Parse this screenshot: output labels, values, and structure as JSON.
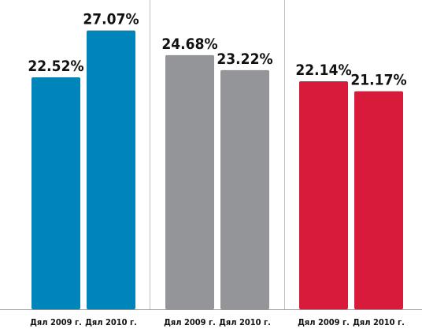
{
  "chart_data": [
    {
      "type": "bar",
      "categories": [
        "Дял 2009 г.",
        "Дял 2010 г."
      ],
      "values": [
        22.52,
        27.07
      ],
      "value_labels": [
        "22.52%",
        "27.07%"
      ],
      "color": "#0085bb",
      "ylim": [
        0,
        28.5
      ]
    },
    {
      "type": "bar",
      "categories": [
        "Дял 2009 г.",
        "Дял 2010 г."
      ],
      "values": [
        24.68,
        23.22
      ],
      "value_labels": [
        "24.68%",
        "23.22%"
      ],
      "color": "#949598",
      "ylim": [
        0,
        28.5
      ]
    },
    {
      "type": "bar",
      "categories": [
        "Дял 2009 г.",
        "Дял 2010 г."
      ],
      "values": [
        22.14,
        21.17
      ],
      "value_labels": [
        "22.14%",
        "21.17%"
      ],
      "color": "#d81b3a",
      "ylim": [
        0,
        28.5
      ]
    }
  ]
}
